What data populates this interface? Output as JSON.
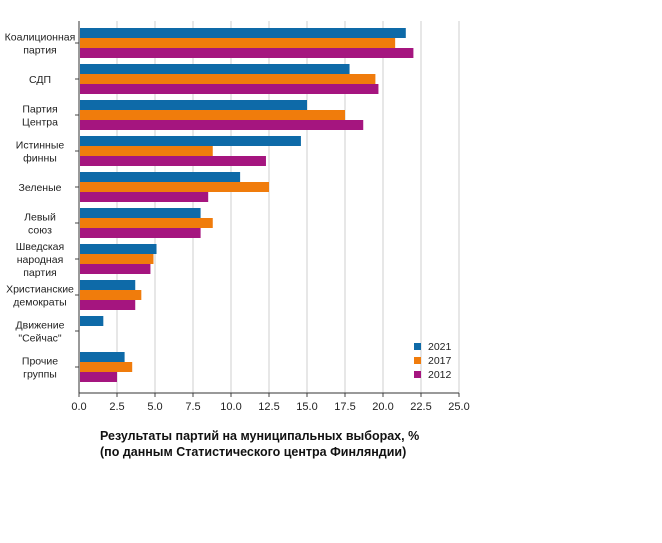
{
  "chart_data": {
    "type": "bar",
    "orientation": "horizontal",
    "title": "Результаты партий на муниципальных выборах, %",
    "subtitle": "(по данным Статистического центра Финляндии)",
    "categories": [
      [
        "Коалиционная",
        "партия"
      ],
      [
        "СДП"
      ],
      [
        "Партия",
        "Центра"
      ],
      [
        "Истинные",
        "финны"
      ],
      [
        "Зеленые"
      ],
      [
        "Левый",
        "союз"
      ],
      [
        "Шведская",
        "народная",
        "партия"
      ],
      [
        "Христианские",
        "демократы"
      ],
      [
        "Движение",
        "\"Сейчас\""
      ],
      [
        "Прочие",
        "группы"
      ]
    ],
    "series": [
      {
        "name": "2021",
        "color": "#0e6aa8",
        "values": [
          21.5,
          17.8,
          15.0,
          14.6,
          10.6,
          8.0,
          5.1,
          3.7,
          1.6,
          3.0
        ]
      },
      {
        "name": "2017",
        "color": "#f07c0c",
        "values": [
          20.8,
          19.5,
          17.5,
          8.8,
          12.5,
          8.8,
          4.9,
          4.1,
          0,
          3.5
        ]
      },
      {
        "name": "2012",
        "color": "#a5157f",
        "values": [
          22.0,
          19.7,
          18.7,
          12.3,
          8.5,
          8.0,
          4.7,
          3.7,
          0,
          2.5
        ]
      }
    ],
    "xlim": [
      0,
      25
    ],
    "xticks": [
      "0.0",
      "2.5",
      "5.0",
      "7.5",
      "10.0",
      "12.5",
      "15.0",
      "17.5",
      "20.0",
      "22.5",
      "25.0"
    ],
    "grid": true,
    "legend_position": "bottom-right"
  }
}
